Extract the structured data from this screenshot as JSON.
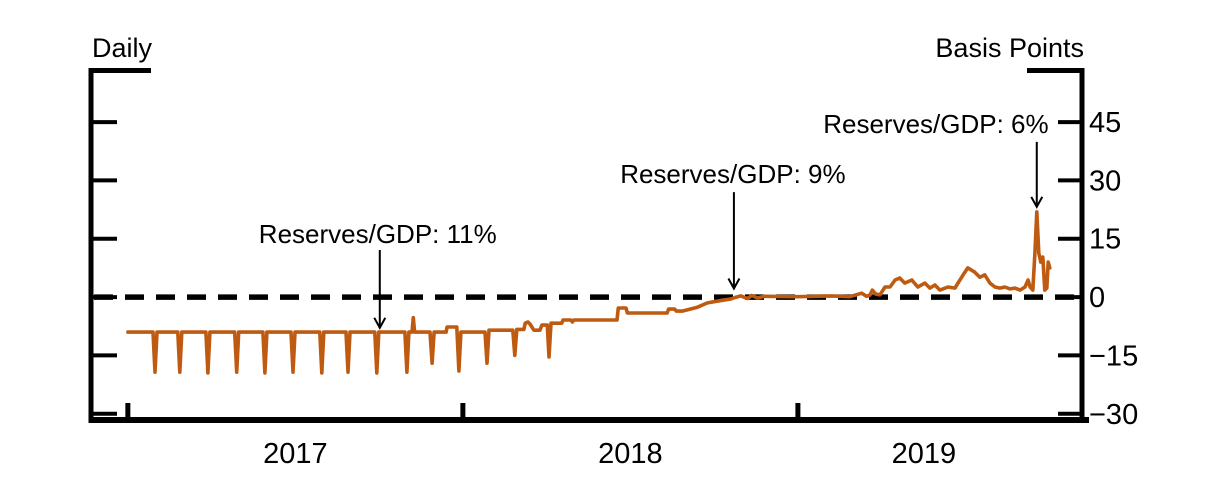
{
  "chart": {
    "left_header": "Daily",
    "right_header": "Basis Points",
    "line_color": "#bf5a11",
    "axis_color": "#000000",
    "background_color": "#ffffff"
  },
  "chart_data": {
    "type": "line",
    "title": "",
    "left_axis_header": "Daily",
    "right_axis_header": "Basis Points",
    "xlabel": "",
    "ylabel": "Basis Points",
    "xlim": [
      2016.89,
      2019.848
    ],
    "ylim": [
      -31.6,
      58.9
    ],
    "grid": false,
    "legend_position": "none",
    "x_ticks": [
      {
        "t": 2017,
        "label": "2017"
      },
      {
        "t": 2018,
        "label": "2018"
      },
      {
        "t": 2019,
        "label": "2019"
      }
    ],
    "y_ticks": [
      {
        "v": 45,
        "label": "45"
      },
      {
        "v": 30,
        "label": "30"
      },
      {
        "v": 15,
        "label": "15"
      },
      {
        "v": 0,
        "label": "0"
      },
      {
        "v": -15,
        "label": "−15"
      },
      {
        "v": -30,
        "label": "−30"
      }
    ],
    "zero_line": {
      "value": 0,
      "style": "dashed",
      "color": "#000000"
    },
    "annotations": [
      {
        "label": "Reserves/GDP: 11%",
        "text_t": 2017.746,
        "text_bp": 13.9,
        "arrow_t": 2017.752,
        "arrow_from_bp": 12.1,
        "arrow_to_bp": -7.9
      },
      {
        "label": "Reserves/GDP: 9%",
        "text_t": 2018.806,
        "text_bp": 29.3,
        "arrow_t": 2018.809,
        "arrow_from_bp": 27.0,
        "arrow_to_bp": 2.2
      },
      {
        "label": "Reserves/GDP: 6%",
        "text_t": 2019.412,
        "text_bp": 42.2,
        "arrow_t": 2019.713,
        "arrow_from_bp": 39.9,
        "arrow_to_bp": 23.2
      }
    ],
    "series": [
      {
        "name": "",
        "color": "#bf5a11",
        "points": [
          [
            2017.0,
            -9.0
          ],
          [
            2017.075,
            -9.0
          ],
          [
            2017.081,
            -19.3
          ],
          [
            2017.087,
            -9.0
          ],
          [
            2017.149,
            -9.0
          ],
          [
            2017.155,
            -19.3
          ],
          [
            2017.161,
            -9.0
          ],
          [
            2017.233,
            -9.0
          ],
          [
            2017.239,
            -19.5
          ],
          [
            2017.245,
            -9.0
          ],
          [
            2017.319,
            -9.0
          ],
          [
            2017.325,
            -19.3
          ],
          [
            2017.331,
            -9.0
          ],
          [
            2017.403,
            -9.0
          ],
          [
            2017.409,
            -19.5
          ],
          [
            2017.415,
            -9.0
          ],
          [
            2017.487,
            -9.0
          ],
          [
            2017.493,
            -19.3
          ],
          [
            2017.499,
            -9.0
          ],
          [
            2017.573,
            -9.0
          ],
          [
            2017.579,
            -19.5
          ],
          [
            2017.585,
            -9.0
          ],
          [
            2017.651,
            -9.0
          ],
          [
            2017.657,
            -19.3
          ],
          [
            2017.663,
            -9.0
          ],
          [
            2017.737,
            -9.0
          ],
          [
            2017.743,
            -19.5
          ],
          [
            2017.749,
            -9.0
          ],
          [
            2017.827,
            -9.0
          ],
          [
            2017.833,
            -19.3
          ],
          [
            2017.839,
            -9.0
          ],
          [
            2017.848,
            -9.0
          ],
          [
            2017.852,
            -5.3
          ],
          [
            2017.856,
            -9.0
          ],
          [
            2017.902,
            -9.0
          ],
          [
            2017.908,
            -17.0
          ],
          [
            2017.914,
            -9.0
          ],
          [
            2017.95,
            -9.0
          ],
          [
            2017.953,
            -7.7
          ],
          [
            2017.982,
            -7.7
          ],
          [
            2017.988,
            -19.0
          ],
          [
            2017.994,
            -9.0
          ],
          [
            2018.066,
            -9.0
          ],
          [
            2018.072,
            -17.0
          ],
          [
            2018.078,
            -8.5
          ],
          [
            2018.149,
            -8.5
          ],
          [
            2018.155,
            -15.0
          ],
          [
            2018.161,
            -8.3
          ],
          [
            2018.182,
            -8.3
          ],
          [
            2018.186,
            -6.7
          ],
          [
            2018.194,
            -6.4
          ],
          [
            2018.2,
            -6.9
          ],
          [
            2018.212,
            -8.5
          ],
          [
            2018.23,
            -8.5
          ],
          [
            2018.236,
            -7.2
          ],
          [
            2018.252,
            -7.2
          ],
          [
            2018.257,
            -15.4
          ],
          [
            2018.263,
            -6.7
          ],
          [
            2018.295,
            -6.7
          ],
          [
            2018.299,
            -5.9
          ],
          [
            2018.322,
            -5.9
          ],
          [
            2018.327,
            -6.4
          ],
          [
            2018.331,
            -5.9
          ],
          [
            2018.46,
            -5.9
          ],
          [
            2018.464,
            -2.8
          ],
          [
            2018.487,
            -2.8
          ],
          [
            2018.491,
            -4.1
          ],
          [
            2018.61,
            -4.1
          ],
          [
            2018.614,
            -3.1
          ],
          [
            2018.632,
            -3.1
          ],
          [
            2018.637,
            -3.6
          ],
          [
            2018.655,
            -3.6
          ],
          [
            2018.7,
            -2.6
          ],
          [
            2018.73,
            -1.5
          ],
          [
            2018.776,
            -0.8
          ],
          [
            2018.8,
            -0.5
          ],
          [
            2018.812,
            -0.1
          ],
          [
            2018.83,
            0.3
          ],
          [
            2018.85,
            -0.4
          ],
          [
            2018.862,
            0.4
          ],
          [
            2018.88,
            -0.2
          ],
          [
            2018.9,
            0.2
          ],
          [
            2019.0,
            0.1
          ],
          [
            2019.1,
            0.3
          ],
          [
            2019.155,
            0.1
          ],
          [
            2019.19,
            1.0
          ],
          [
            2019.205,
            0.2
          ],
          [
            2019.215,
            0.5
          ],
          [
            2019.222,
            1.8
          ],
          [
            2019.232,
            0.8
          ],
          [
            2019.245,
            0.6
          ],
          [
            2019.26,
            2.6
          ],
          [
            2019.275,
            2.6
          ],
          [
            2019.29,
            4.4
          ],
          [
            2019.304,
            4.9
          ],
          [
            2019.319,
            3.6
          ],
          [
            2019.34,
            4.4
          ],
          [
            2019.358,
            2.6
          ],
          [
            2019.379,
            3.6
          ],
          [
            2019.394,
            2.3
          ],
          [
            2019.409,
            3.1
          ],
          [
            2019.424,
            1.8
          ],
          [
            2019.448,
            2.6
          ],
          [
            2019.469,
            2.3
          ],
          [
            2019.478,
            3.6
          ],
          [
            2019.493,
            5.7
          ],
          [
            2019.507,
            7.5
          ],
          [
            2019.528,
            6.4
          ],
          [
            2019.543,
            5.1
          ],
          [
            2019.558,
            5.7
          ],
          [
            2019.573,
            3.6
          ],
          [
            2019.588,
            2.6
          ],
          [
            2019.603,
            2.3
          ],
          [
            2019.618,
            2.6
          ],
          [
            2019.633,
            2.1
          ],
          [
            2019.648,
            2.3
          ],
          [
            2019.663,
            1.8
          ],
          [
            2019.678,
            2.6
          ],
          [
            2019.687,
            4.4
          ],
          [
            2019.693,
            2.6
          ],
          [
            2019.701,
            1.8
          ],
          [
            2019.707,
            10.8
          ],
          [
            2019.713,
            21.9
          ],
          [
            2019.719,
            11.3
          ],
          [
            2019.725,
            9.0
          ],
          [
            2019.731,
            10.3
          ],
          [
            2019.737,
            1.8
          ],
          [
            2019.743,
            2.3
          ],
          [
            2019.747,
            9.0
          ],
          [
            2019.752,
            7.5
          ]
        ]
      }
    ]
  }
}
